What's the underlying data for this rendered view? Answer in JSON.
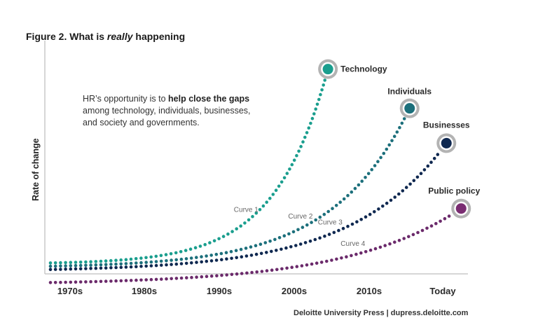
{
  "figure": {
    "title_prefix": "Figure 2. What is ",
    "title_emphasis": "really",
    "title_suffix": " happening",
    "annotation_pre": "HR’s opportunity is to ",
    "annotation_bold": "help close the gaps",
    "annotation_post": " among technology, individuals, businesses, and society and governments.",
    "credit": "Deloitte University Press  |  dupress.deloitte.com"
  },
  "chart_data": {
    "type": "line",
    "title": "Figure 2. What is really happening",
    "xlabel": "",
    "ylabel": "Rate of change",
    "categories": [
      "1970s",
      "1980s",
      "1990s",
      "2000s",
      "2010s",
      "Today"
    ],
    "grid": false,
    "series": [
      {
        "name": "Technology",
        "curve_label": "Curve 1",
        "color": "#1a9e8e",
        "end_fill": "#1a9e8e",
        "start": 0.0,
        "end": 3.45,
        "y_start": 0.05,
        "y_end": 0.94
      },
      {
        "name": "Individuals",
        "curve_label": "Curve 2",
        "color": "#1c6f7b",
        "end_fill": "#1c6f7b",
        "start": 0.0,
        "end": 4.55,
        "y_start": 0.035,
        "y_end": 0.76
      },
      {
        "name": "Businesses",
        "curve_label": "Curve 3",
        "color": "#0f2850",
        "end_fill": "#0f2850",
        "start": 0.0,
        "end": 5.05,
        "y_start": 0.02,
        "y_end": 0.6
      },
      {
        "name": "Public policy",
        "curve_label": "Curve 4",
        "color": "#6b2a6b",
        "end_fill": "#7a2d72",
        "start": 0.0,
        "end": 5.25,
        "y_start": -0.04,
        "y_end": 0.3
      }
    ]
  }
}
